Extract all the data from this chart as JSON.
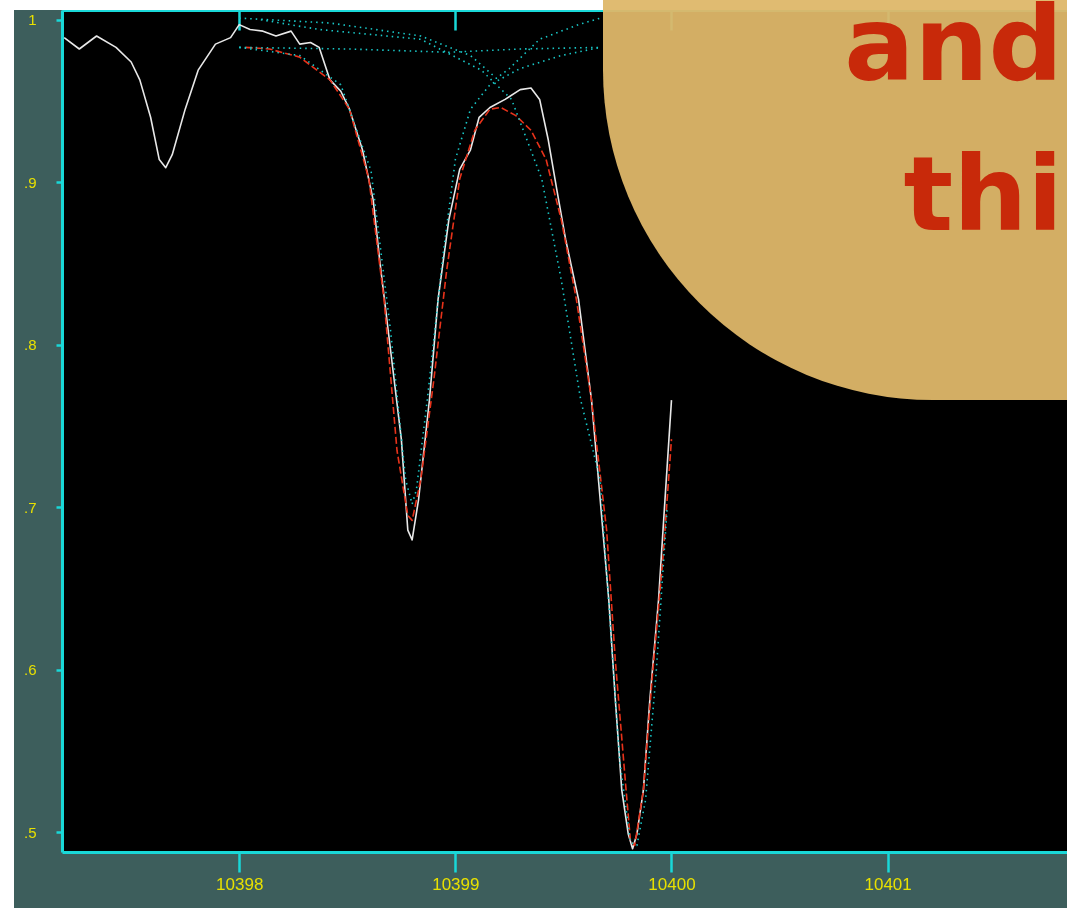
{
  "chart_data": {
    "type": "line",
    "xlim": [
      10397.18,
      10401.83
    ],
    "ylim": [
      0.488,
      1.006
    ],
    "xticks": [
      10398,
      10399,
      10400,
      10401
    ],
    "yticks": [
      {
        "value": 0.5,
        "label": ".5"
      },
      {
        "value": 0.6,
        "label": ".6"
      },
      {
        "value": 0.7,
        "label": ".7"
      },
      {
        "value": 0.8,
        "label": ".8"
      },
      {
        "value": 0.9,
        "label": ".9"
      },
      1
    ],
    "grid": false,
    "annotations": [
      "and",
      "thi"
    ],
    "series": [
      {
        "color": "#e8e8e8",
        "line_style": "solid",
        "x": [
          10397.19,
          10397.26,
          10397.34,
          10397.43,
          10397.5,
          10397.54,
          10397.59,
          10397.63,
          10397.66,
          10397.69,
          10397.75,
          10397.81,
          10397.89,
          10397.96,
          10398.0,
          10398.05,
          10398.11,
          10398.17,
          10398.24,
          10398.28,
          10398.33,
          10398.37,
          10398.42,
          10398.47,
          10398.51,
          10398.57,
          10398.62,
          10398.65,
          10398.7,
          10398.75,
          10398.78,
          10398.8,
          10398.83,
          10398.88,
          10398.92,
          10398.97,
          10399.02,
          10399.07,
          10399.11,
          10399.16,
          10399.23,
          10399.3,
          10399.35,
          10399.39,
          10399.43,
          10399.47,
          10399.51,
          10399.57,
          10399.63,
          10399.67,
          10399.71,
          10399.74,
          10399.77,
          10399.8,
          10399.82,
          10399.84,
          10399.87,
          10399.9,
          10399.94,
          10399.97,
          10400.0
        ],
        "values": [
          0.989,
          0.982,
          0.99,
          0.983,
          0.974,
          0.963,
          0.94,
          0.914,
          0.909,
          0.917,
          0.945,
          0.969,
          0.985,
          0.989,
          0.997,
          0.994,
          0.993,
          0.99,
          0.993,
          0.985,
          0.986,
          0.983,
          0.963,
          0.956,
          0.945,
          0.92,
          0.889,
          0.852,
          0.797,
          0.742,
          0.686,
          0.68,
          0.705,
          0.766,
          0.828,
          0.877,
          0.908,
          0.92,
          0.94,
          0.946,
          0.951,
          0.957,
          0.958,
          0.951,
          0.926,
          0.895,
          0.865,
          0.828,
          0.766,
          0.705,
          0.643,
          0.582,
          0.526,
          0.499,
          0.49,
          0.499,
          0.526,
          0.582,
          0.643,
          0.705,
          0.766
        ]
      },
      {
        "color": "#e8321a",
        "line_style": "dashed",
        "x": [
          10398.03,
          10398.14,
          10398.28,
          10398.42,
          10398.51,
          10398.6,
          10398.67,
          10398.73,
          10398.78,
          10398.8,
          10398.84,
          10398.9,
          10398.96,
          10399.02,
          10399.09,
          10399.16,
          10399.21,
          10399.28,
          10399.35,
          10399.42,
          10399.49,
          10399.56,
          10399.63,
          10399.7,
          10399.74,
          10399.79,
          10399.81,
          10399.83,
          10399.87,
          10399.91,
          10399.96,
          10400.0
        ],
        "values": [
          0.983,
          0.982,
          0.977,
          0.963,
          0.945,
          0.902,
          0.828,
          0.735,
          0.695,
          0.692,
          0.717,
          0.778,
          0.846,
          0.902,
          0.932,
          0.945,
          0.946,
          0.941,
          0.932,
          0.914,
          0.877,
          0.828,
          0.766,
          0.686,
          0.606,
          0.526,
          0.495,
          0.492,
          0.526,
          0.594,
          0.668,
          0.742
        ]
      },
      {
        "color": "#19c8c8",
        "line_style": "dotted",
        "x": [
          10398.0,
          10398.28,
          10398.47,
          10398.61,
          10398.7,
          10398.77,
          10398.8,
          10398.82,
          10398.87,
          10398.94,
          10399.0,
          10399.07,
          10399.16,
          10399.3,
          10399.49,
          10399.67
        ],
        "values": [
          0.983,
          0.978,
          0.96,
          0.907,
          0.809,
          0.717,
          0.702,
          0.711,
          0.766,
          0.852,
          0.914,
          0.945,
          0.96,
          0.97,
          0.978,
          0.983
        ]
      },
      {
        "color": "#19c8c8",
        "line_style": "dotted",
        "x": [
          10398.1,
          10398.37,
          10398.84,
          10399.12,
          10399.26,
          10399.4,
          10399.49,
          10399.58,
          10399.67,
          10399.76,
          10399.81,
          10399.84,
          10399.88,
          10399.93,
          10399.98
        ],
        "values": [
          1.0,
          0.994,
          0.988,
          0.969,
          0.951,
          0.902,
          0.84,
          0.766,
          0.717,
          0.545,
          0.494,
          0.492,
          0.52,
          0.6,
          0.7
        ]
      },
      {
        "color": "#19c8c8",
        "line_style": "dotted",
        "x": [
          10398.0,
          10398.42,
          10398.84,
          10399.07,
          10399.19,
          10399.25,
          10399.39,
          10399.57,
          10399.67
        ],
        "values": [
          1.001,
          0.998,
          0.99,
          0.978,
          0.964,
          0.97,
          0.988,
          0.997,
          1.001
        ]
      },
      {
        "color": "#19c8c8",
        "line_style": "dotted",
        "x": [
          10398.0,
          10398.51,
          10398.97,
          10399.3,
          10399.67
        ],
        "values": [
          0.983,
          0.982,
          0.98,
          0.982,
          0.983
        ]
      }
    ]
  }
}
